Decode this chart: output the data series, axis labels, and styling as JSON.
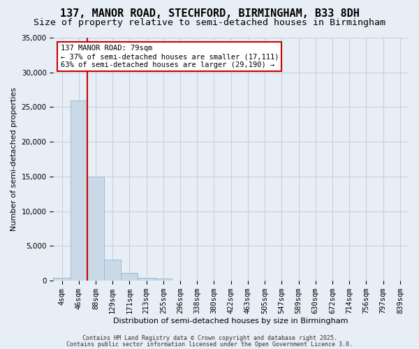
{
  "title": "137, MANOR ROAD, STECHFORD, BIRMINGHAM, B33 8DH",
  "subtitle": "Size of property relative to semi-detached houses in Birmingham",
  "xlabel": "Distribution of semi-detached houses by size in Birmingham",
  "ylabel": "Number of semi-detached properties",
  "footer1": "Contains HM Land Registry data © Crown copyright and database right 2025.",
  "footer2": "Contains public sector information licensed under the Open Government Licence 3.0.",
  "bar_values": [
    400,
    26000,
    15000,
    3000,
    1100,
    450,
    300,
    0,
    0,
    0,
    0,
    0,
    0,
    0,
    0,
    0,
    0,
    0,
    0,
    0,
    0
  ],
  "bin_labels": [
    "4sqm",
    "46sqm",
    "88sqm",
    "129sqm",
    "171sqm",
    "213sqm",
    "255sqm",
    "296sqm",
    "338sqm",
    "380sqm",
    "422sqm",
    "463sqm",
    "505sqm",
    "547sqm",
    "589sqm",
    "630sqm",
    "672sqm",
    "714sqm",
    "756sqm",
    "797sqm",
    "839sqm"
  ],
  "bar_color": "#c9d9e8",
  "bar_edge_color": "#a0b8d0",
  "grid_color": "#c8d0dc",
  "background_color": "#e8eef5",
  "vline_color": "#cc0000",
  "annotation_text": "137 MANOR ROAD: 79sqm\n← 37% of semi-detached houses are smaller (17,111)\n63% of semi-detached houses are larger (29,190) →",
  "annotation_box_color": "#cc0000",
  "annotation_fill": "#ffffff",
  "ylim": [
    0,
    35000
  ],
  "yticks": [
    0,
    5000,
    10000,
    15000,
    20000,
    25000,
    30000,
    35000
  ],
  "title_fontsize": 11,
  "subtitle_fontsize": 9.5,
  "axis_fontsize": 8,
  "tick_fontsize": 7.5
}
